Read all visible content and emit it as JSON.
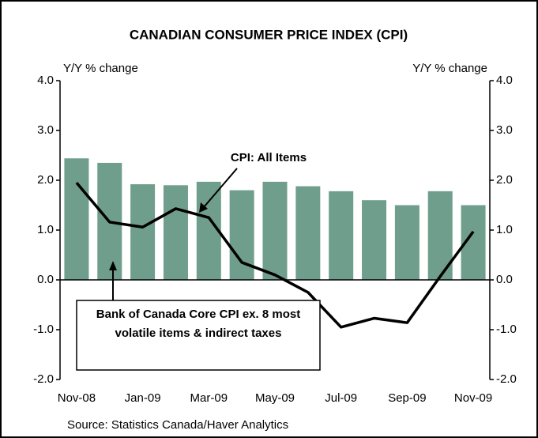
{
  "chart_data": {
    "type": "bar-line",
    "title": "CANADIAN CONSUMER PRICE INDEX (CPI)",
    "y_label": "Y/Y % change",
    "y2_label": "Y/Y % change",
    "source": "Source: Statistics Canada/Haver Analytics",
    "categories": [
      "Nov-08",
      null,
      "Jan-09",
      null,
      "Mar-09",
      null,
      "May-09",
      null,
      "Jul-09",
      null,
      "Sep-09",
      null,
      "Nov-09"
    ],
    "series": [
      {
        "name": "Bank of Canada Core CPI ex. 8 most volatile items & indirect taxes",
        "type": "bar",
        "color": "#6f9e8c",
        "values": [
          2.44,
          2.35,
          1.92,
          1.9,
          1.97,
          1.8,
          1.97,
          1.88,
          1.78,
          1.6,
          1.5,
          1.78,
          1.5
        ]
      },
      {
        "name": "CPI: All Items",
        "type": "line",
        "color": "#000000",
        "axis": "y2",
        "values": [
          1.95,
          1.16,
          1.06,
          1.43,
          1.25,
          0.35,
          0.1,
          -0.25,
          -0.95,
          -0.77,
          -0.86,
          0.07,
          0.97
        ]
      }
    ],
    "ylim": [
      -2,
      4
    ],
    "yticks": [
      {
        "value": -2,
        "label": "-2.0"
      },
      {
        "value": -1,
        "label": "-1.0"
      },
      {
        "value": 0,
        "label": "0.0"
      },
      {
        "value": 1,
        "label": "1.0"
      },
      {
        "value": 2,
        "label": "2.0"
      },
      {
        "value": 3,
        "label": "3.0"
      },
      {
        "value": 4,
        "label": "4.0"
      }
    ],
    "y2lim": [
      -2,
      4
    ],
    "y2ticks": [
      {
        "value": -2,
        "label": "-2.0"
      },
      {
        "value": -1,
        "label": "-1.0"
      },
      {
        "value": 0,
        "label": "0.0"
      },
      {
        "value": 1,
        "label": "1.0"
      },
      {
        "value": 2,
        "label": "2.0"
      },
      {
        "value": 3,
        "label": "3.0"
      },
      {
        "value": 4,
        "label": "4.0"
      }
    ]
  }
}
